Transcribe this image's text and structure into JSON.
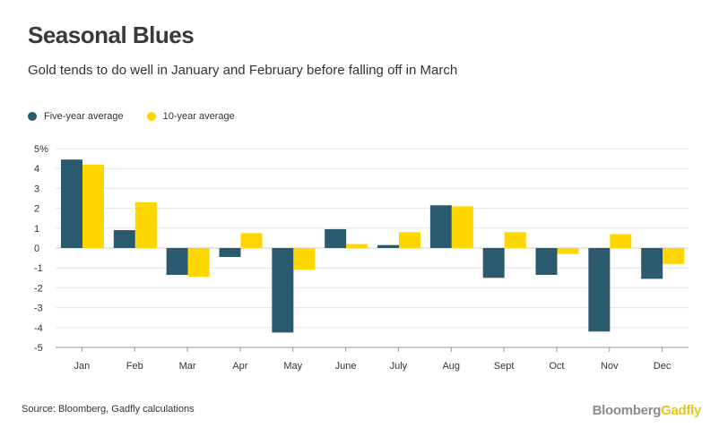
{
  "title": "Seasonal Blues",
  "subtitle": "Gold tends to do well in January and February before falling off in March",
  "legend": [
    {
      "label": "Five-year average",
      "color": "#2b5a6e"
    },
    {
      "label": "10-year average",
      "color": "#ffd700"
    }
  ],
  "source": "Source: Bloomberg, Gadfly calculations",
  "brand": {
    "part1": "Bloomberg",
    "part2": "Gadfly"
  },
  "chart_data": {
    "type": "bar",
    "categories": [
      "Jan",
      "Feb",
      "Mar",
      "Apr",
      "May",
      "June",
      "July",
      "Aug",
      "Sept",
      "Oct",
      "Nov",
      "Dec"
    ],
    "series": [
      {
        "name": "Five-year average",
        "color": "#2b5a6e",
        "values": [
          4.45,
          0.9,
          -1.35,
          -0.45,
          -4.25,
          0.95,
          0.15,
          2.15,
          -1.5,
          -1.35,
          -4.2,
          -1.55
        ]
      },
      {
        "name": "10-year average",
        "color": "#ffd700",
        "values": [
          4.2,
          2.3,
          -1.45,
          0.75,
          -1.1,
          0.2,
          0.8,
          2.1,
          0.8,
          -0.3,
          0.7,
          -0.8
        ]
      }
    ],
    "yticks": [
      "5%",
      "4",
      "3",
      "2",
      "1",
      "0",
      "-1",
      "-2",
      "-3",
      "-4",
      "-5"
    ],
    "ylim": [
      -5,
      5
    ],
    "grid": true,
    "legend_position": "top-left"
  }
}
